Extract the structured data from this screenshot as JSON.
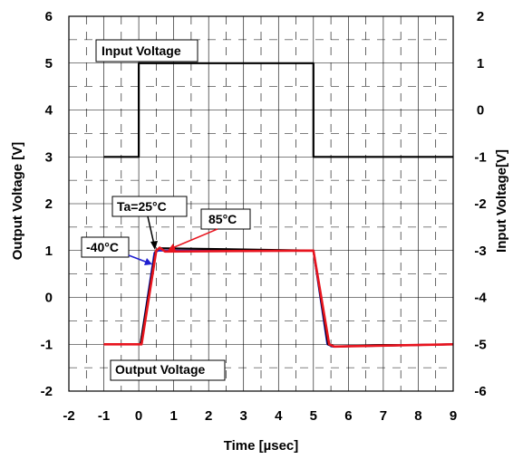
{
  "chart_data": {
    "type": "line",
    "xlabel": "Time [µsec]",
    "ylabel_left": "Output Voltage [V]",
    "ylabel_right": "Input Voltage[V]",
    "xlim": [
      -2,
      9
    ],
    "ylim_left": [
      -2,
      6
    ],
    "ylim_right": [
      -6,
      2
    ],
    "x_ticks": [
      "-2",
      "-1",
      "0",
      "1",
      "2",
      "3",
      "4",
      "5",
      "6",
      "7",
      "8",
      "9"
    ],
    "y_left_ticks": [
      "-2",
      "-1",
      "0",
      "1",
      "2",
      "3",
      "4",
      "5",
      "6"
    ],
    "y_right_ticks": [
      "-6",
      "-5",
      "-4",
      "-3",
      "-2",
      "-1",
      "0",
      "1",
      "2"
    ],
    "grid": true,
    "series": [
      {
        "name": "Input Voltage",
        "axis": "right",
        "color": "#000000",
        "x": [
          -1,
          0,
          0,
          5,
          5,
          9
        ],
        "y": [
          -1,
          -1,
          1,
          1,
          -1,
          -1
        ]
      },
      {
        "name": "-40°C",
        "axis": "left",
        "color": "#1f1fd0",
        "x": [
          -1,
          0.05,
          0.45,
          0.55,
          5.0,
          5.4,
          5.55,
          9
        ],
        "y": [
          -1,
          -1,
          0.95,
          1.0,
          1.0,
          -1.0,
          -1.05,
          -1
        ]
      },
      {
        "name": "Ta=25°C",
        "axis": "left",
        "color": "#000000",
        "x": [
          -1,
          0.05,
          0.48,
          0.6,
          5.0,
          5.42,
          5.58,
          9
        ],
        "y": [
          -1,
          -1,
          0.98,
          1.05,
          1.0,
          -1.0,
          -1.05,
          -1
        ]
      },
      {
        "name": "85°C",
        "axis": "left",
        "color": "#e8141e",
        "x": [
          -1,
          0.08,
          0.5,
          0.6,
          0.75,
          5.0,
          5.45,
          5.6,
          9
        ],
        "y": [
          -1,
          -1,
          1.0,
          1.06,
          0.98,
          1.0,
          -1.0,
          -1.05,
          -1
        ]
      }
    ],
    "annotations": [
      {
        "id": "input",
        "text": "Input Voltage"
      },
      {
        "id": "output",
        "text": "Output Voltage"
      },
      {
        "id": "ta25",
        "text": "Ta=25°C"
      },
      {
        "id": "m40",
        "text": "-40°C"
      },
      {
        "id": "t85",
        "text": "85°C"
      }
    ]
  }
}
